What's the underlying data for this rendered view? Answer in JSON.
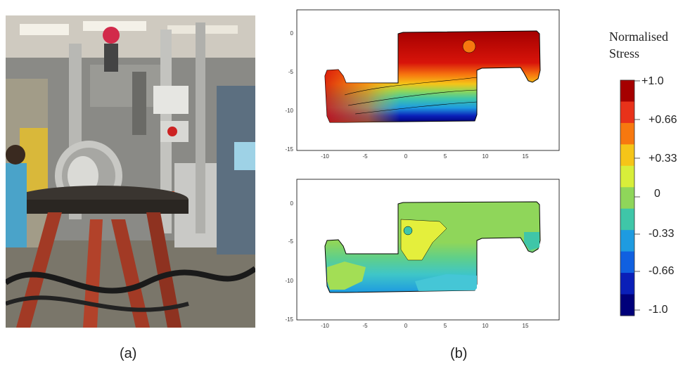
{
  "figure": {
    "captions": {
      "a": "(a)",
      "b": "(b)"
    }
  },
  "contour_plots": {
    "x_ticks": [
      "-10",
      "-5",
      "0",
      "5",
      "10",
      "15"
    ],
    "y_ticks": [
      "0",
      "-5",
      "-10",
      "-15"
    ]
  },
  "colorbar": {
    "title_line1": "Normalised",
    "title_line2": "Stress",
    "ticks": [
      "+1.0",
      "+0.66",
      "+0.33",
      "0",
      "-0.33",
      "-0.66",
      "-1.0"
    ],
    "colors": [
      "#a50000",
      "#e8321a",
      "#f7780f",
      "#f5c518",
      "#d8ee3a",
      "#8fd65a",
      "#3fc6a8",
      "#1e9be0",
      "#1060e0",
      "#0a1fb8",
      "#00007a"
    ]
  }
}
